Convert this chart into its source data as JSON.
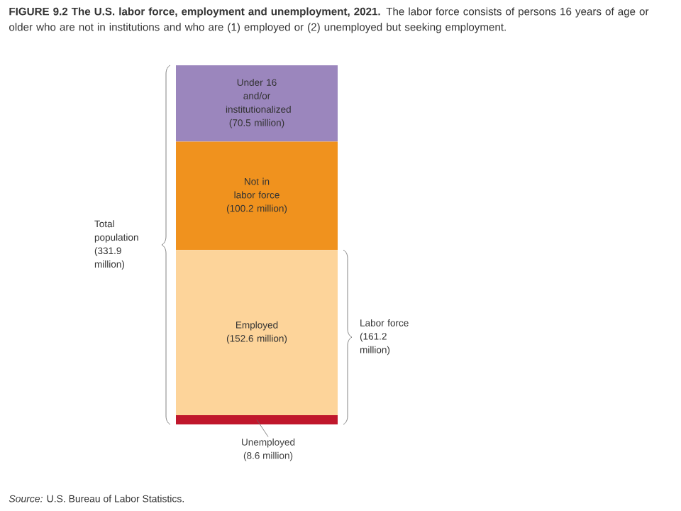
{
  "chart_data": {
    "type": "bar",
    "stacked": true,
    "title": "**FIGURE 9.2 The U.S. labor force, employment and unemployment, 2021.** The labor force consists of persons 16 years of age or older who are not in institutions and who are (1) employed or (2) unemployed but seeking employment.",
    "categories": [
      null
    ],
    "series": [
      {
        "name": "Unemployed",
        "color": "#c0172c",
        "values": [
          8.6
        ],
        "value_labels": [
          "(8.6 million)"
        ]
      },
      {
        "name": "Employed",
        "color": "#fdd49a",
        "values": [
          152.6
        ],
        "value_labels": [
          "(152.6 million)"
        ]
      },
      {
        "name": "Not in labor force",
        "color": "#f0921e",
        "values": [
          100.2
        ],
        "value_labels": [
          "(100.2 million)"
        ]
      },
      {
        "name": "Under 16 and/or institutionalized",
        "color": "#9b86bd",
        "values": [
          70.5
        ],
        "value_labels": [
          "(70.5 million)"
        ]
      }
    ],
    "annotations": [
      "Total population (331.9 million)",
      "Labor force (161.2 million)",
      "*Source:* U.S. Bureau of Labor Statistics."
    ]
  }
}
